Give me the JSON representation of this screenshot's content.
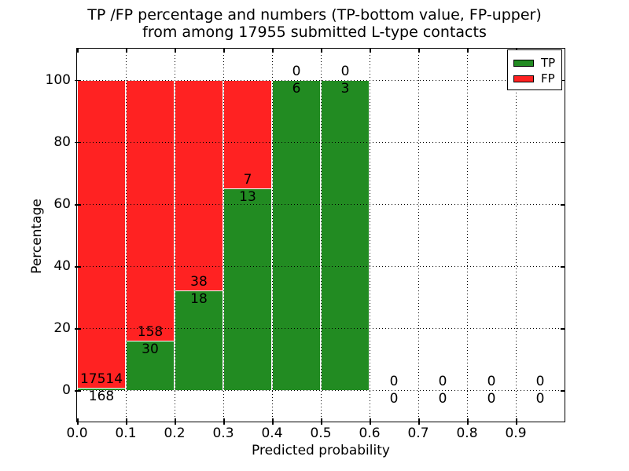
{
  "chart_data": {
    "type": "bar",
    "stacked": true,
    "title": "TP /FP percentage and numbers (TP-bottom value, FP-upper)\nfrom among 17955 submitted L-type contacts",
    "xlabel": "Predicted probability",
    "ylabel": "Percentage",
    "xlim": [
      0.0,
      1.0
    ],
    "ylim": [
      -10,
      110
    ],
    "xtick_labels": [
      "0.0",
      "0.1",
      "0.2",
      "0.3",
      "0.4",
      "0.5",
      "0.6",
      "0.7",
      "0.8",
      "0.9"
    ],
    "ytick_values": [
      0,
      20,
      40,
      60,
      80,
      100
    ],
    "grid": true,
    "legend": {
      "position": "upper-right",
      "entries": [
        {
          "label": "TP",
          "color": "#228B22"
        },
        {
          "label": "FP",
          "color": "#FF2222"
        }
      ]
    },
    "bins": [
      {
        "x_range": [
          0.0,
          0.1
        ],
        "tp": 168,
        "fp": 17514
      },
      {
        "x_range": [
          0.1,
          0.2
        ],
        "tp": 30,
        "fp": 158
      },
      {
        "x_range": [
          0.2,
          0.3
        ],
        "tp": 18,
        "fp": 38
      },
      {
        "x_range": [
          0.3,
          0.4
        ],
        "tp": 13,
        "fp": 7
      },
      {
        "x_range": [
          0.4,
          0.5
        ],
        "tp": 6,
        "fp": 0
      },
      {
        "x_range": [
          0.5,
          0.6
        ],
        "tp": 3,
        "fp": 0
      },
      {
        "x_range": [
          0.6,
          0.7
        ],
        "tp": 0,
        "fp": 0
      },
      {
        "x_range": [
          0.7,
          0.8
        ],
        "tp": 0,
        "fp": 0
      },
      {
        "x_range": [
          0.8,
          0.9
        ],
        "tp": 0,
        "fp": 0
      },
      {
        "x_range": [
          0.9,
          1.0
        ],
        "tp": 0,
        "fp": 0
      }
    ]
  }
}
